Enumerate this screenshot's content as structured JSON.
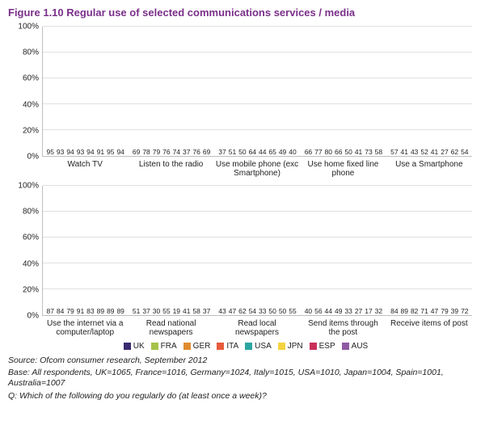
{
  "title": "Figure 1.10    Regular use of selected communications services / media",
  "series": [
    {
      "key": "UK",
      "color": "#3a2a70"
    },
    {
      "key": "FRA",
      "color": "#a5c249"
    },
    {
      "key": "GER",
      "color": "#e08b2f"
    },
    {
      "key": "ITA",
      "color": "#e85a3c"
    },
    {
      "key": "USA",
      "color": "#2aa6a0"
    },
    {
      "key": "JPN",
      "color": "#f4d33f"
    },
    {
      "key": "ESP",
      "color": "#c9305a"
    },
    {
      "key": "AUS",
      "color": "#8f5aa3"
    }
  ],
  "y": {
    "min": 0,
    "max": 100,
    "step": 20,
    "ticks": [
      0,
      20,
      40,
      60,
      80,
      100
    ],
    "suffix": "%"
  },
  "panels": [
    {
      "groups": [
        {
          "label": "Watch TV",
          "values": [
            95,
            93,
            94,
            93,
            94,
            91,
            95,
            94
          ]
        },
        {
          "label": "Listen to the radio",
          "values": [
            69,
            78,
            79,
            76,
            74,
            37,
            76,
            69
          ]
        },
        {
          "label": "Use mobile phone (exc Smartphone)",
          "values": [
            37,
            51,
            50,
            64,
            44,
            65,
            49,
            40
          ]
        },
        {
          "label": "Use home fixed line phone",
          "values": [
            66,
            77,
            80,
            66,
            50,
            41,
            73,
            58
          ]
        },
        {
          "label": "Use a Smartphone",
          "values": [
            57,
            41,
            43,
            52,
            41,
            27,
            62,
            54
          ]
        }
      ]
    },
    {
      "groups": [
        {
          "label": "Use the internet via a computer/laptop",
          "values": [
            87,
            84,
            79,
            91,
            83,
            89,
            89,
            89
          ]
        },
        {
          "label": "Read national newspapers",
          "values": [
            51,
            37,
            30,
            55,
            19,
            41,
            58,
            37
          ]
        },
        {
          "label": "Read local newspapers",
          "values": [
            43,
            47,
            62,
            54,
            33,
            50,
            50,
            55
          ]
        },
        {
          "label": "Send items through the post",
          "values": [
            40,
            56,
            44,
            49,
            33,
            27,
            17,
            32
          ]
        },
        {
          "label": "Receive items of post",
          "values": [
            84,
            89,
            82,
            71,
            47,
            79,
            39,
            72
          ]
        }
      ]
    }
  ],
  "footnotes": [
    "Source: Ofcom consumer research, September 2012",
    "Base: All respondents, UK=1065, France=1016, Germany=1024, Italy=1015, USA=1010, Japan=1004, Spain=1001, Australia=1007",
    "Q: Which of the following do you regularly do (at least once a week)?"
  ]
}
